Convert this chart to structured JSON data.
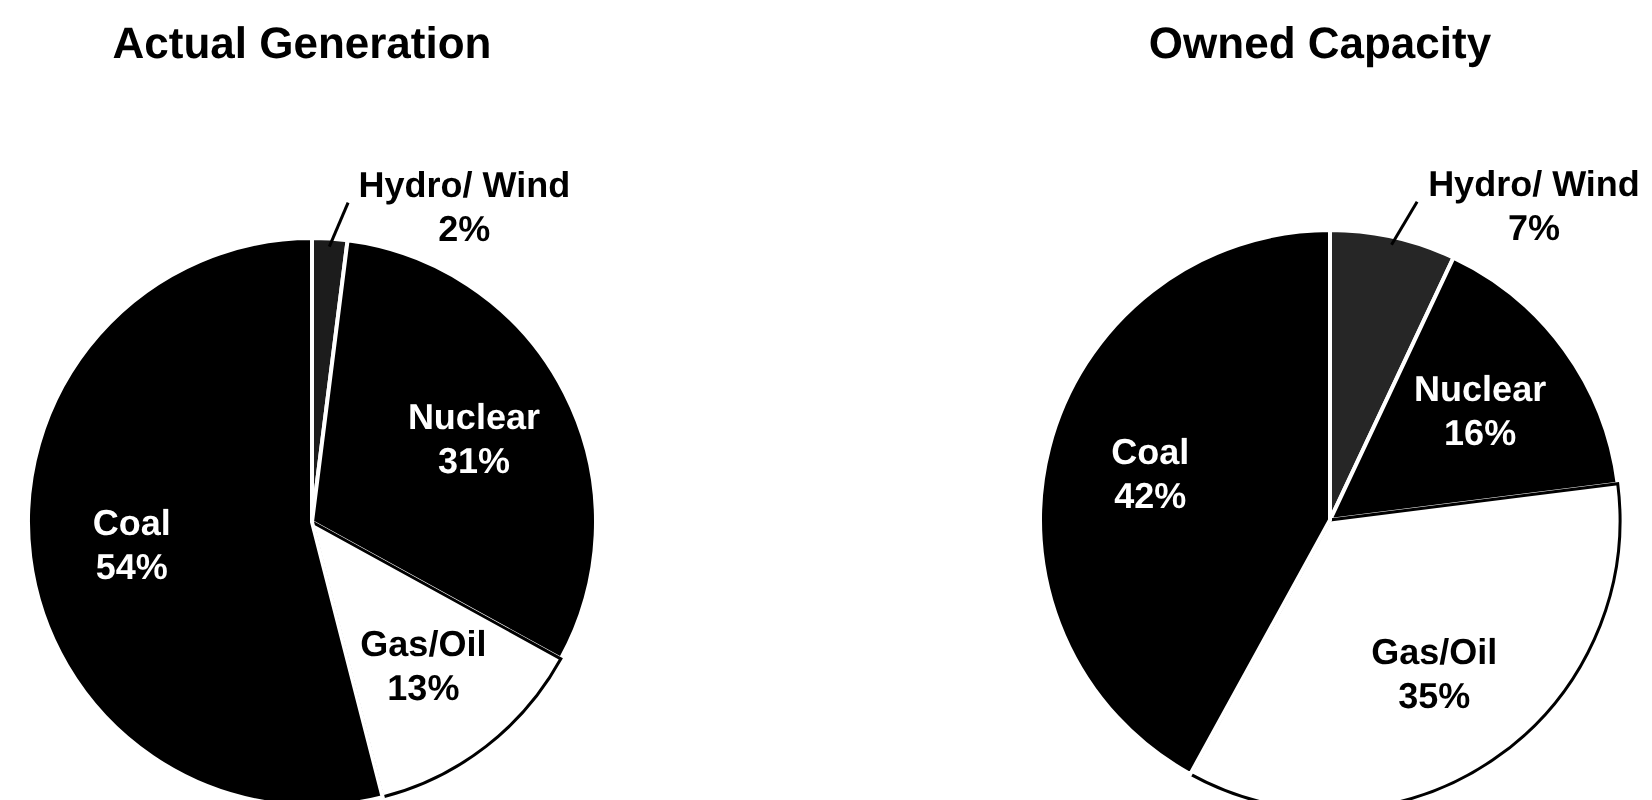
{
  "chart_data": [
    {
      "type": "pie",
      "title": "Actual Generation",
      "categories": [
        "Hydro/ Wind",
        "Nuclear",
        "Gas/Oil",
        "Coal"
      ],
      "values": [
        2,
        31,
        13,
        54
      ],
      "colors": [
        "#1c1c1c",
        "#000000",
        "#ffffff",
        "#000000"
      ],
      "value_labels": [
        "2%",
        "31%",
        "13%",
        "54%"
      ]
    },
    {
      "type": "pie",
      "title": "Owned Capacity",
      "categories": [
        "Hydro/ Wind",
        "Nuclear",
        "Gas/Oil",
        "Coal"
      ],
      "values": [
        7,
        16,
        35,
        42
      ],
      "colors": [
        "#262626",
        "#000000",
        "#ffffff",
        "#000000"
      ],
      "value_labels": [
        "7%",
        "16%",
        "35%",
        "42%"
      ]
    }
  ]
}
